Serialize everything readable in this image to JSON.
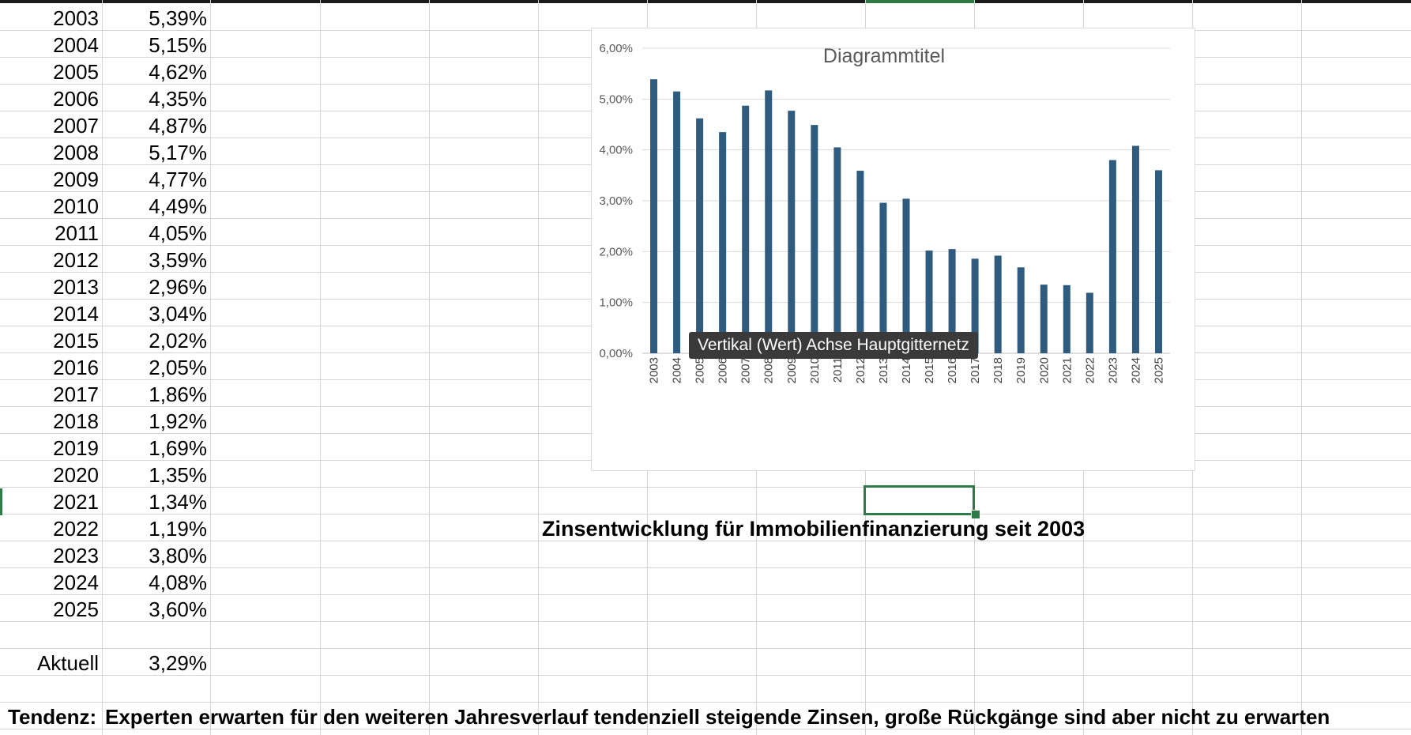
{
  "rows": [
    {
      "year": "2003",
      "value": "5,39%"
    },
    {
      "year": "2004",
      "value": "5,15%"
    },
    {
      "year": "2005",
      "value": "4,62%"
    },
    {
      "year": "2006",
      "value": "4,35%"
    },
    {
      "year": "2007",
      "value": "4,87%"
    },
    {
      "year": "2008",
      "value": "5,17%"
    },
    {
      "year": "2009",
      "value": "4,77%"
    },
    {
      "year": "2010",
      "value": "4,49%"
    },
    {
      "year": "2011",
      "value": "4,05%"
    },
    {
      "year": "2012",
      "value": "3,59%"
    },
    {
      "year": "2013",
      "value": "2,96%"
    },
    {
      "year": "2014",
      "value": "3,04%"
    },
    {
      "year": "2015",
      "value": "2,02%"
    },
    {
      "year": "2016",
      "value": "2,05%"
    },
    {
      "year": "2017",
      "value": "1,86%"
    },
    {
      "year": "2018",
      "value": "1,92%"
    },
    {
      "year": "2019",
      "value": "1,69%"
    },
    {
      "year": "2020",
      "value": "1,35%"
    },
    {
      "year": "2021",
      "value": "1,34%"
    },
    {
      "year": "2022",
      "value": "1,19%"
    },
    {
      "year": "2023",
      "value": "3,80%"
    },
    {
      "year": "2024",
      "value": "4,08%"
    },
    {
      "year": "2025",
      "value": "3,60%"
    }
  ],
  "current": {
    "label": "Aktuell",
    "value": "3,29%"
  },
  "caption": "Zinsentwicklung für Immobilienfinanzierung seit 2003",
  "tendenz": {
    "label": "Tendenz:",
    "text": "Experten erwarten für den weiteren Jahresverlauf tendenziell steigende Zinsen, große Rückgänge sind aber nicht zu erwarten"
  },
  "tooltip": "Vertikal (Wert) Achse Hauptgitternetz",
  "colors": {
    "bar": "#2e5b7e",
    "selection": "#2f7a46",
    "tooltip_bg": "#3a3a3a"
  },
  "chart_data": {
    "type": "bar",
    "title": "Diagrammtitel",
    "categories": [
      "2003",
      "2004",
      "2005",
      "2006",
      "2007",
      "2008",
      "2009",
      "2010",
      "2011",
      "2012",
      "2013",
      "2014",
      "2015",
      "2016",
      "2017",
      "2018",
      "2019",
      "2020",
      "2021",
      "2022",
      "2023",
      "2024",
      "2025"
    ],
    "values": [
      5.39,
      5.15,
      4.62,
      4.35,
      4.87,
      5.17,
      4.77,
      4.49,
      4.05,
      3.59,
      2.96,
      3.04,
      2.02,
      2.05,
      1.86,
      1.92,
      1.69,
      1.35,
      1.34,
      1.19,
      3.8,
      4.08,
      3.6
    ],
    "yticks": [
      "0,00%",
      "1,00%",
      "2,00%",
      "3,00%",
      "4,00%",
      "5,00%",
      "6,00%"
    ],
    "ylim": [
      0,
      6
    ],
    "grid": true,
    "legend": "none"
  }
}
